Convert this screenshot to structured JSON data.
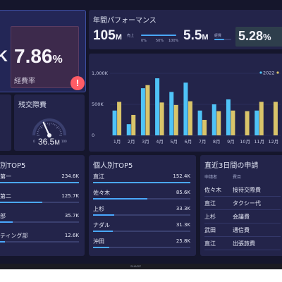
{
  "kpi": {
    "left_suffix": "K",
    "ratio_value": "7.86",
    "ratio_unit": "%",
    "ratio_label": "経費率",
    "alert_glyph": "!"
  },
  "annual": {
    "title": "年間パフォーマンス",
    "sales_value": "105",
    "sales_unit": "M",
    "sales_label": "売上",
    "sales_mini_labels": [
      "0%",
      "50%",
      "100%"
    ],
    "sales_progress": 1.0,
    "expense_value": "5.5",
    "expense_unit": "M",
    "expense_label": "経費",
    "expense_progress": 0.6,
    "ratio_value": "5.28",
    "ratio_unit": "%"
  },
  "chart_data": {
    "type": "bar",
    "categories": [
      "1月",
      "2月",
      "3月",
      "4月",
      "5月",
      "6月",
      "7月",
      "8月",
      "9月",
      "10月",
      "11月",
      "12月"
    ],
    "series": [
      {
        "name": "2022",
        "color": "#4fc3f7",
        "values": [
          400,
          180,
          760,
          920,
          700,
          850,
          400,
          500,
          580,
          0,
          400,
          0
        ]
      },
      {
        "name": "",
        "color": "#d9c46a",
        "values": [
          540,
          330,
          810,
          530,
          490,
          550,
          250,
          390,
          400,
          390,
          540,
          540
        ]
      }
    ],
    "yticks": [
      "0",
      "500K",
      "1,000K"
    ],
    "ylim": [
      0,
      1000
    ],
    "legend_position": "top-right"
  },
  "gauge": {
    "title": "残交際費",
    "min_label": "0",
    "max_label": "100",
    "value": "36.5",
    "unit": "M",
    "fraction": 0.365
  },
  "departments": {
    "title": "別TOP5",
    "rows": [
      {
        "label": "第一",
        "value": "234.6K",
        "fraction": 1.0
      },
      {
        "label": "第二",
        "value": "125.7K",
        "fraction": 0.54
      },
      {
        "label": "部",
        "value": "35.7K",
        "fraction": 0.16
      },
      {
        "label": "ティング部",
        "value": "12.6K",
        "fraction": 0.06
      }
    ]
  },
  "persons": {
    "title": "個人別TOP5",
    "rows": [
      {
        "label": "直江",
        "value": "152.4K",
        "fraction": 1.0
      },
      {
        "label": "佐々木",
        "value": "85.6K",
        "fraction": 0.56
      },
      {
        "label": "上杉",
        "value": "33.3K",
        "fraction": 0.22
      },
      {
        "label": "ナダル",
        "value": "31.3K",
        "fraction": 0.2
      },
      {
        "label": "沖田",
        "value": "25.8K",
        "fraction": 0.17
      }
    ]
  },
  "requests": {
    "title": "直近3日間の申請",
    "col_applicant": "申請者",
    "col_category": "費目",
    "rows": [
      {
        "applicant": "佐々木",
        "category": "接待交際費"
      },
      {
        "applicant": "直江",
        "category": "タクシー代"
      },
      {
        "applicant": "上杉",
        "category": "会議費"
      },
      {
        "applicant": "武田",
        "category": "通信費"
      },
      {
        "applicant": "直江",
        "category": "出張旅費"
      }
    ]
  },
  "brand": "SHARP"
}
